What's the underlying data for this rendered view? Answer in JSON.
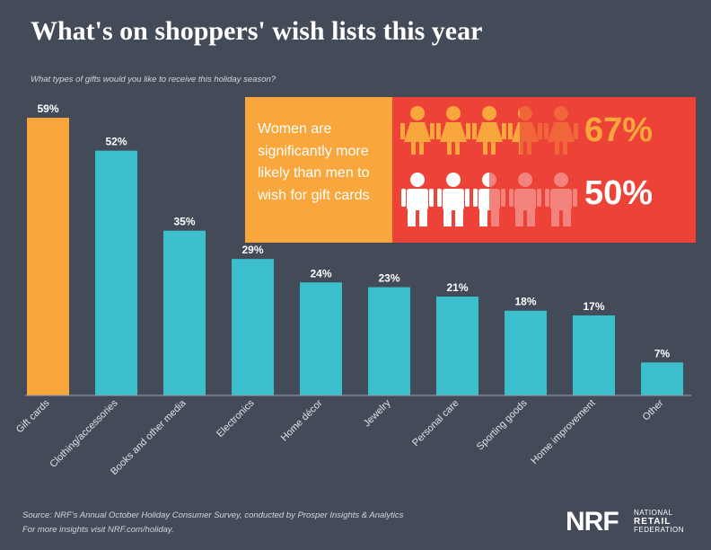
{
  "title": "What's on shoppers' wish lists this year",
  "subtitle": "What types of gifts would you like to receive this holiday season?",
  "chart_data": {
    "type": "bar",
    "categories": [
      "Gift cards",
      "Clothing/accessories",
      "Books and other media",
      "Electronics",
      "Home décor",
      "Jewelry",
      "Personal care",
      "Sporting goods",
      "Home improvement",
      "Other"
    ],
    "values": [
      59,
      52,
      35,
      29,
      24,
      23,
      21,
      18,
      17,
      7
    ],
    "value_labels": [
      "59%",
      "52%",
      "35%",
      "29%",
      "24%",
      "23%",
      "21%",
      "18%",
      "17%",
      "7%"
    ],
    "ylim": [
      0,
      59
    ],
    "grid": false,
    "colors": {
      "highlight": "#f9a63c",
      "bar": "#3bbfcc",
      "baseline": "#9aa3ad"
    }
  },
  "callout": {
    "text": "Women are significantly more likely than men to wish for gift cards",
    "women_pct": "67%",
    "men_pct": "50%",
    "women_value": 67,
    "men_value": 50,
    "icons": [
      "woman-icon",
      "man-icon"
    ],
    "colors": {
      "left_bg": "#f9a63c",
      "right_bg": "#ec4238",
      "women_icon": "#f9a63c",
      "men_icon": "#ffffff"
    }
  },
  "footer": {
    "source": "Source: NRF's Annual October Holiday Consumer Survey, conducted by Prosper Insights & Analytics",
    "more": "For more insights visit NRF.com/holiday."
  },
  "logo": {
    "mark": "NRF",
    "line1": "NATIONAL",
    "line2": "RETAIL",
    "line3": "FEDERATION"
  }
}
